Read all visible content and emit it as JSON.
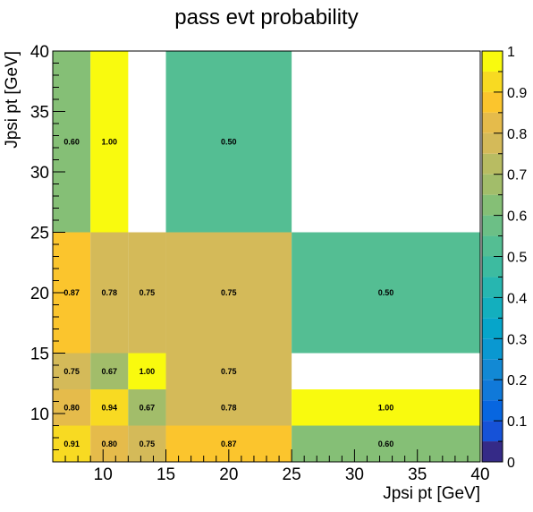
{
  "chart_data": {
    "type": "heatmap",
    "title": "pass evt probability",
    "xlabel": "Jpsi pt [GeV]",
    "ylabel": "Jpsi pt [GeV]",
    "xlim": [
      6,
      40
    ],
    "ylim": [
      6,
      40
    ],
    "zlim": [
      0,
      1
    ],
    "x_ticks": [
      10,
      15,
      20,
      25,
      30,
      35,
      40
    ],
    "y_ticks": [
      10,
      15,
      20,
      25,
      30,
      35,
      40
    ],
    "z_ticks": [
      0,
      0.1,
      0.2,
      0.3,
      0.4,
      0.5,
      0.6,
      0.7,
      0.8,
      0.9,
      1
    ],
    "z_tick_labels": [
      "0",
      "0.1",
      "0.2",
      "0.3",
      "0.4",
      "0.5",
      "0.6",
      "0.7",
      "0.8",
      "0.9",
      "1"
    ],
    "x_edges": [
      6,
      9,
      12,
      15,
      25,
      40
    ],
    "y_edges": [
      6,
      9,
      12,
      15,
      25,
      40
    ],
    "cells": [
      {
        "x": [
          6,
          9
        ],
        "y": [
          6,
          9
        ],
        "value": 0.91,
        "label": "0.91"
      },
      {
        "x": [
          9,
          12
        ],
        "y": [
          6,
          9
        ],
        "value": 0.8,
        "label": "0.80"
      },
      {
        "x": [
          12,
          15
        ],
        "y": [
          6,
          9
        ],
        "value": 0.75,
        "label": "0.75"
      },
      {
        "x": [
          15,
          25
        ],
        "y": [
          6,
          9
        ],
        "value": 0.87,
        "label": "0.87"
      },
      {
        "x": [
          25,
          40
        ],
        "y": [
          6,
          9
        ],
        "value": 0.6,
        "label": "0.60"
      },
      {
        "x": [
          6,
          9
        ],
        "y": [
          9,
          12
        ],
        "value": 0.8,
        "label": "0.80"
      },
      {
        "x": [
          9,
          12
        ],
        "y": [
          9,
          12
        ],
        "value": 0.94,
        "label": "0.94"
      },
      {
        "x": [
          12,
          15
        ],
        "y": [
          9,
          12
        ],
        "value": 0.67,
        "label": "0.67"
      },
      {
        "x": [
          15,
          25
        ],
        "y": [
          9,
          12
        ],
        "value": 0.78,
        "label": "0.78"
      },
      {
        "x": [
          25,
          40
        ],
        "y": [
          9,
          12
        ],
        "value": 1.0,
        "label": "1.00"
      },
      {
        "x": [
          6,
          9
        ],
        "y": [
          12,
          15
        ],
        "value": 0.75,
        "label": "0.75"
      },
      {
        "x": [
          9,
          12
        ],
        "y": [
          12,
          15
        ],
        "value": 0.67,
        "label": "0.67"
      },
      {
        "x": [
          12,
          15
        ],
        "y": [
          12,
          15
        ],
        "value": 1.0,
        "label": "1.00"
      },
      {
        "x": [
          15,
          25
        ],
        "y": [
          12,
          15
        ],
        "value": 0.75,
        "label": "0.75"
      },
      {
        "x": [
          6,
          9
        ],
        "y": [
          15,
          25
        ],
        "value": 0.87,
        "label": "0.87"
      },
      {
        "x": [
          9,
          12
        ],
        "y": [
          15,
          25
        ],
        "value": 0.78,
        "label": "0.78"
      },
      {
        "x": [
          12,
          15
        ],
        "y": [
          15,
          25
        ],
        "value": 0.75,
        "label": "0.75"
      },
      {
        "x": [
          15,
          25
        ],
        "y": [
          15,
          25
        ],
        "value": 0.75,
        "label": "0.75"
      },
      {
        "x": [
          25,
          40
        ],
        "y": [
          15,
          25
        ],
        "value": 0.5,
        "label": "0.50"
      },
      {
        "x": [
          6,
          9
        ],
        "y": [
          25,
          40
        ],
        "value": 0.6,
        "label": "0.60"
      },
      {
        "x": [
          9,
          12
        ],
        "y": [
          25,
          40
        ],
        "value": 1.0,
        "label": "1.00"
      },
      {
        "x": [
          15,
          25
        ],
        "y": [
          25,
          40
        ],
        "value": 0.5,
        "label": "0.50"
      }
    ],
    "color_scale": [
      {
        "min": 0.0,
        "color": "#352a87"
      },
      {
        "min": 0.05,
        "color": "#1652d8"
      },
      {
        "min": 0.1,
        "color": "#0766e0"
      },
      {
        "min": 0.15,
        "color": "#1079d9"
      },
      {
        "min": 0.2,
        "color": "#1289d4"
      },
      {
        "min": 0.25,
        "color": "#0a98d1"
      },
      {
        "min": 0.3,
        "color": "#06a5ca"
      },
      {
        "min": 0.35,
        "color": "#13afbe"
      },
      {
        "min": 0.4,
        "color": "#27b6b0"
      },
      {
        "min": 0.45,
        "color": "#3dbba0"
      },
      {
        "min": 0.5,
        "color": "#54be93"
      },
      {
        "min": 0.55,
        "color": "#6cbf86"
      },
      {
        "min": 0.6,
        "color": "#85bf76"
      },
      {
        "min": 0.65,
        "color": "#a2bd6a"
      },
      {
        "min": 0.7,
        "color": "#b8bc62"
      },
      {
        "min": 0.75,
        "color": "#d4ba59"
      },
      {
        "min": 0.8,
        "color": "#e5bb4b"
      },
      {
        "min": 0.85,
        "color": "#fbc52d"
      },
      {
        "min": 0.9,
        "color": "#f8da22"
      },
      {
        "min": 0.95,
        "color": "#f9fa0e"
      }
    ],
    "grid": false,
    "legend": "colorbar-right"
  }
}
